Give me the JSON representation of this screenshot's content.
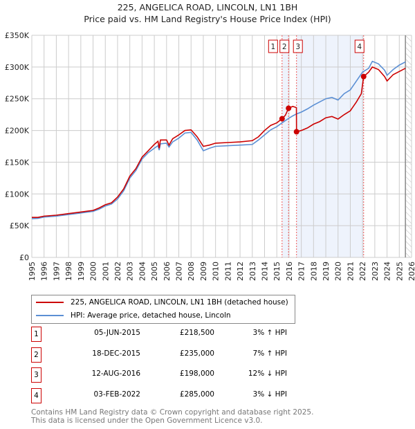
{
  "chart_data": {
    "type": "line",
    "title": "225, ANGELICA ROAD, LINCOLN, LN1 1BH",
    "subtitle": "Price paid vs. HM Land Registry's House Price Index (HPI)",
    "xlim": [
      1995,
      2026
    ],
    "ylim": [
      0,
      350000
    ],
    "y_ticks": [
      {
        "v": 0,
        "label": "£0"
      },
      {
        "v": 50000,
        "label": "£50K"
      },
      {
        "v": 100000,
        "label": "£100K"
      },
      {
        "v": 150000,
        "label": "£150K"
      },
      {
        "v": 200000,
        "label": "£200K"
      },
      {
        "v": 250000,
        "label": "£250K"
      },
      {
        "v": 300000,
        "label": "£300K"
      },
      {
        "v": 350000,
        "label": "£350K"
      }
    ],
    "x_ticks": [
      "1995",
      "1996",
      "1997",
      "1998",
      "1999",
      "2000",
      "2001",
      "2002",
      "2003",
      "2004",
      "2005",
      "2006",
      "2007",
      "2008",
      "2009",
      "2010",
      "2011",
      "2012",
      "2013",
      "2014",
      "2015",
      "2016",
      "2017",
      "2018",
      "2019",
      "2020",
      "2021",
      "2022",
      "2023",
      "2024",
      "2025",
      "2026"
    ],
    "grid": true,
    "colors": {
      "property": "#cc0000",
      "hpi": "#5b8fd4",
      "shade": "#eef3fc"
    },
    "series": [
      {
        "name": "225, ANGELICA ROAD, LINCOLN, LN1 1BH (detached house)",
        "key": "property",
        "points": [
          [
            1995,
            63000
          ],
          [
            1995.5,
            63000
          ],
          [
            1996,
            65000
          ],
          [
            1997,
            66500
          ],
          [
            1998,
            69000
          ],
          [
            1999,
            71500
          ],
          [
            2000,
            74000
          ],
          [
            2000.5,
            78000
          ],
          [
            2001,
            83000
          ],
          [
            2001.5,
            86000
          ],
          [
            2002,
            95000
          ],
          [
            2002.5,
            108000
          ],
          [
            2003,
            128000
          ],
          [
            2003.5,
            140000
          ],
          [
            2004,
            158000
          ],
          [
            2004.5,
            168000
          ],
          [
            2005,
            178000
          ],
          [
            2005.3,
            183000
          ],
          [
            2005.4,
            172000
          ],
          [
            2005.5,
            185000
          ],
          [
            2006,
            185000
          ],
          [
            2006.2,
            177000
          ],
          [
            2006.5,
            187000
          ],
          [
            2007,
            193000
          ],
          [
            2007.5,
            200000
          ],
          [
            2008,
            201000
          ],
          [
            2008.5,
            190000
          ],
          [
            2009,
            175000
          ],
          [
            2009.5,
            177000
          ],
          [
            2010,
            180000
          ],
          [
            2011,
            181000
          ],
          [
            2012,
            182000
          ],
          [
            2013,
            184000
          ],
          [
            2013.5,
            190000
          ],
          [
            2014,
            200000
          ],
          [
            2014.5,
            208000
          ],
          [
            2015,
            212000
          ],
          [
            2015.43,
            218500
          ],
          [
            2015.7,
            224000
          ],
          [
            2015.96,
            235000
          ],
          [
            2016.3,
            238000
          ],
          [
            2016.6,
            236000
          ],
          [
            2016.61,
            198000
          ],
          [
            2017,
            200000
          ],
          [
            2017.5,
            204000
          ],
          [
            2018,
            210000
          ],
          [
            2018.5,
            214000
          ],
          [
            2019,
            220000
          ],
          [
            2019.5,
            222000
          ],
          [
            2020,
            218000
          ],
          [
            2020.5,
            225000
          ],
          [
            2021,
            231000
          ],
          [
            2021.5,
            245000
          ],
          [
            2021.9,
            258000
          ],
          [
            2022.09,
            285000
          ],
          [
            2022.5,
            292000
          ],
          [
            2022.8,
            300000
          ],
          [
            2023.3,
            296000
          ],
          [
            2023.8,
            285000
          ],
          [
            2024,
            278000
          ],
          [
            2024.5,
            288000
          ],
          [
            2025,
            293000
          ],
          [
            2025.5,
            298000
          ]
        ]
      },
      {
        "name": "HPI: Average price, detached house, Lincoln",
        "key": "hpi",
        "points": [
          [
            1995,
            61000
          ],
          [
            1995.5,
            61500
          ],
          [
            1996,
            63500
          ],
          [
            1997,
            65000
          ],
          [
            1998,
            67500
          ],
          [
            1999,
            70000
          ],
          [
            2000,
            72500
          ],
          [
            2000.5,
            76000
          ],
          [
            2001,
            81000
          ],
          [
            2001.5,
            84000
          ],
          [
            2002,
            92000
          ],
          [
            2002.5,
            105000
          ],
          [
            2003,
            125000
          ],
          [
            2003.5,
            137000
          ],
          [
            2004,
            155000
          ],
          [
            2004.5,
            165000
          ],
          [
            2005,
            172000
          ],
          [
            2005.3,
            176000
          ],
          [
            2005.4,
            169000
          ],
          [
            2005.5,
            179000
          ],
          [
            2006,
            180000
          ],
          [
            2006.2,
            174000
          ],
          [
            2006.5,
            182000
          ],
          [
            2007,
            188000
          ],
          [
            2007.5,
            196000
          ],
          [
            2008,
            197000
          ],
          [
            2008.5,
            185000
          ],
          [
            2009,
            168000
          ],
          [
            2009.5,
            172000
          ],
          [
            2010,
            175000
          ],
          [
            2011,
            176000
          ],
          [
            2012,
            177000
          ],
          [
            2013,
            178000
          ],
          [
            2013.5,
            185000
          ],
          [
            2014,
            193000
          ],
          [
            2014.5,
            201000
          ],
          [
            2015,
            206000
          ],
          [
            2015.43,
            212000
          ],
          [
            2015.96,
            219000
          ],
          [
            2016.3,
            223000
          ],
          [
            2016.6,
            226000
          ],
          [
            2017,
            229000
          ],
          [
            2017.5,
            234000
          ],
          [
            2018,
            240000
          ],
          [
            2018.5,
            245000
          ],
          [
            2019,
            250000
          ],
          [
            2019.5,
            252000
          ],
          [
            2020,
            248000
          ],
          [
            2020.5,
            258000
          ],
          [
            2021,
            264000
          ],
          [
            2021.5,
            278000
          ],
          [
            2022,
            292000
          ],
          [
            2022.5,
            298000
          ],
          [
            2022.8,
            309000
          ],
          [
            2023.3,
            305000
          ],
          [
            2023.8,
            295000
          ],
          [
            2024,
            287000
          ],
          [
            2024.5,
            296000
          ],
          [
            2025,
            303000
          ],
          [
            2025.5,
            308000
          ]
        ]
      }
    ],
    "sales": [
      {
        "label": "1",
        "x": 2015.43,
        "y": 218500,
        "date": "05-JUN-2015",
        "price": "£218,500",
        "hpi": "3% ↑ HPI"
      },
      {
        "label": "2",
        "x": 2015.96,
        "y": 235000,
        "date": "18-DEC-2015",
        "price": "£235,000",
        "hpi": "7% ↑ HPI"
      },
      {
        "label": "3",
        "x": 2016.61,
        "y": 198000,
        "date": "12-AUG-2016",
        "price": "£198,000",
        "hpi": "12% ↓ HPI"
      },
      {
        "label": "4",
        "x": 2022.09,
        "y": 285000,
        "date": "03-FEB-2022",
        "price": "£285,000",
        "hpi": "3% ↓ HPI"
      }
    ],
    "shaded_ranges": [
      [
        2015.43,
        2015.96
      ],
      [
        2016.61,
        2022.09
      ]
    ],
    "forecast_start": 2025.5
  },
  "footer": {
    "line1": "Contains HM Land Registry data © Crown copyright and database right 2025.",
    "line2": "This data is licensed under the Open Government Licence v3.0."
  }
}
